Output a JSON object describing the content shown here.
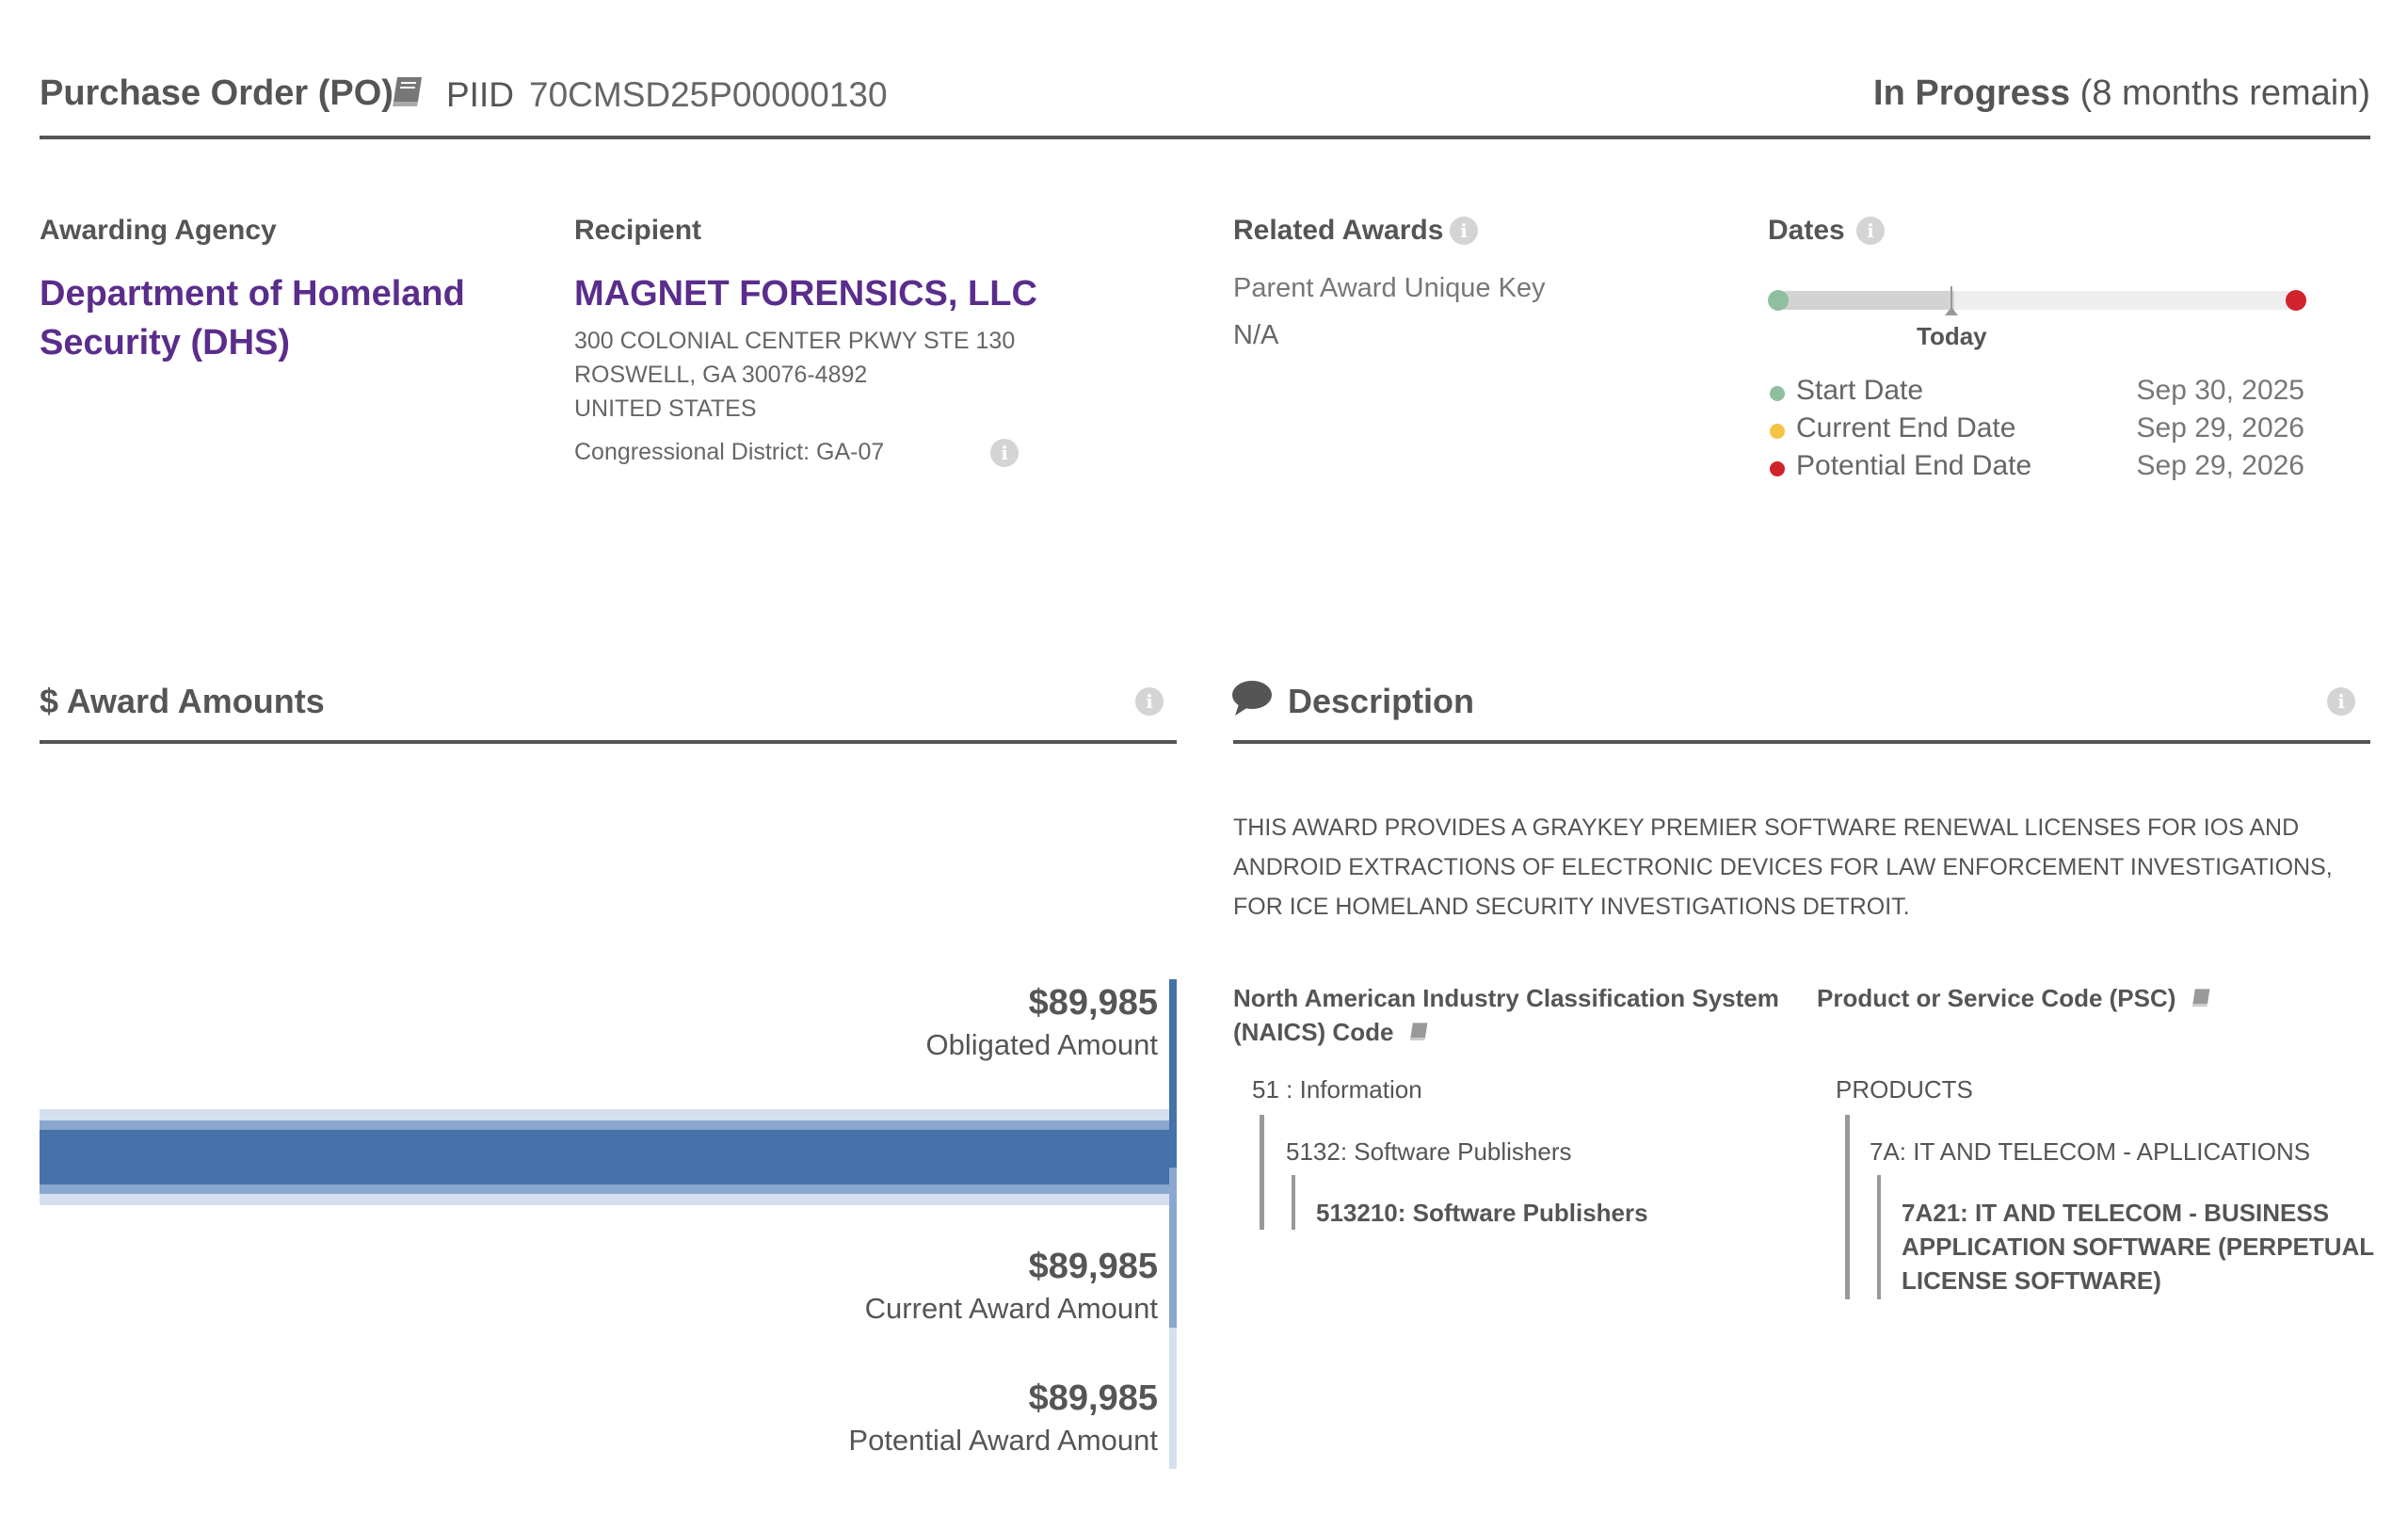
{
  "header": {
    "award_type": "Purchase Order (PO)",
    "piid_label": "PIID",
    "piid_value": "70CMSD25P00000130",
    "status_label": "In Progress",
    "status_remaining": "(8 months remain)",
    "book_icon": "book-icon"
  },
  "overview": {
    "awarding_agency_label": "Awarding Agency",
    "awarding_agency_line1": "Department of Homeland",
    "awarding_agency_line2": "Security (DHS)",
    "recipient_label": "Recipient",
    "recipient_name": "MAGNET FORENSICS, LLC",
    "recipient_address": [
      "300 COLONIAL CENTER PKWY STE 130",
      "ROSWELL, GA 30076-4892",
      "UNITED STATES"
    ],
    "congressional_district": "Congressional District: GA-07",
    "related_awards_label": "Related Awards",
    "parent_key_label": "Parent Award Unique Key",
    "parent_key_value": "N/A",
    "dates_label": "Dates",
    "today_label": "Today",
    "elapsed_fraction": 0.34,
    "dates": [
      {
        "label": "Start Date",
        "value": "Sep 30, 2025",
        "color": "#8fbf9f"
      },
      {
        "label": "Current End Date",
        "value": "Sep 29, 2026",
        "color": "#f5c243"
      },
      {
        "label": "Potential End Date",
        "value": "Sep 29, 2026",
        "color": "#d0232b"
      }
    ]
  },
  "award_amounts": {
    "title": "$ Award Amounts",
    "obligated_value": "$89,985",
    "obligated_label": "Obligated Amount",
    "current_value": "$89,985",
    "current_label": "Current Award Amount",
    "potential_value": "$89,985",
    "potential_label": "Potential Award Amount",
    "bar_dark_color": "#4672a9",
    "bar_mid_color": "#8aa7cf",
    "bar_light_color": "#d5e0ee"
  },
  "description": {
    "title": "Description",
    "text": "THIS AWARD PROVIDES A GRAYKEY PREMIER SOFTWARE RENEWAL LICENSES FOR IOS AND ANDROID EXTRACTIONS OF ELECTRONIC DEVICES FOR LAW ENFORCEMENT INVESTIGATIONS, FOR ICE HOMELAND SECURITY INVESTIGATIONS DETROIT.",
    "naics_heading_line1": "North American Industry Classification System",
    "naics_heading_line2": "(NAICS)  Code",
    "naics_level1": "51 : Information",
    "naics_level2": "5132: Software Publishers",
    "naics_level3": "513210: Software Publishers",
    "psc_heading": "Product or Service Code  (PSC)",
    "psc_level1": "PRODUCTS",
    "psc_level2": "7A: IT AND TELECOM - APLLICATIONS",
    "psc_level3_line1": "7A21: IT AND TELECOM - BUSINESS",
    "psc_level3_line2": "APPLICATION SOFTWARE (PERPETUAL",
    "psc_level3_line3": "LICENSE SOFTWARE)"
  }
}
